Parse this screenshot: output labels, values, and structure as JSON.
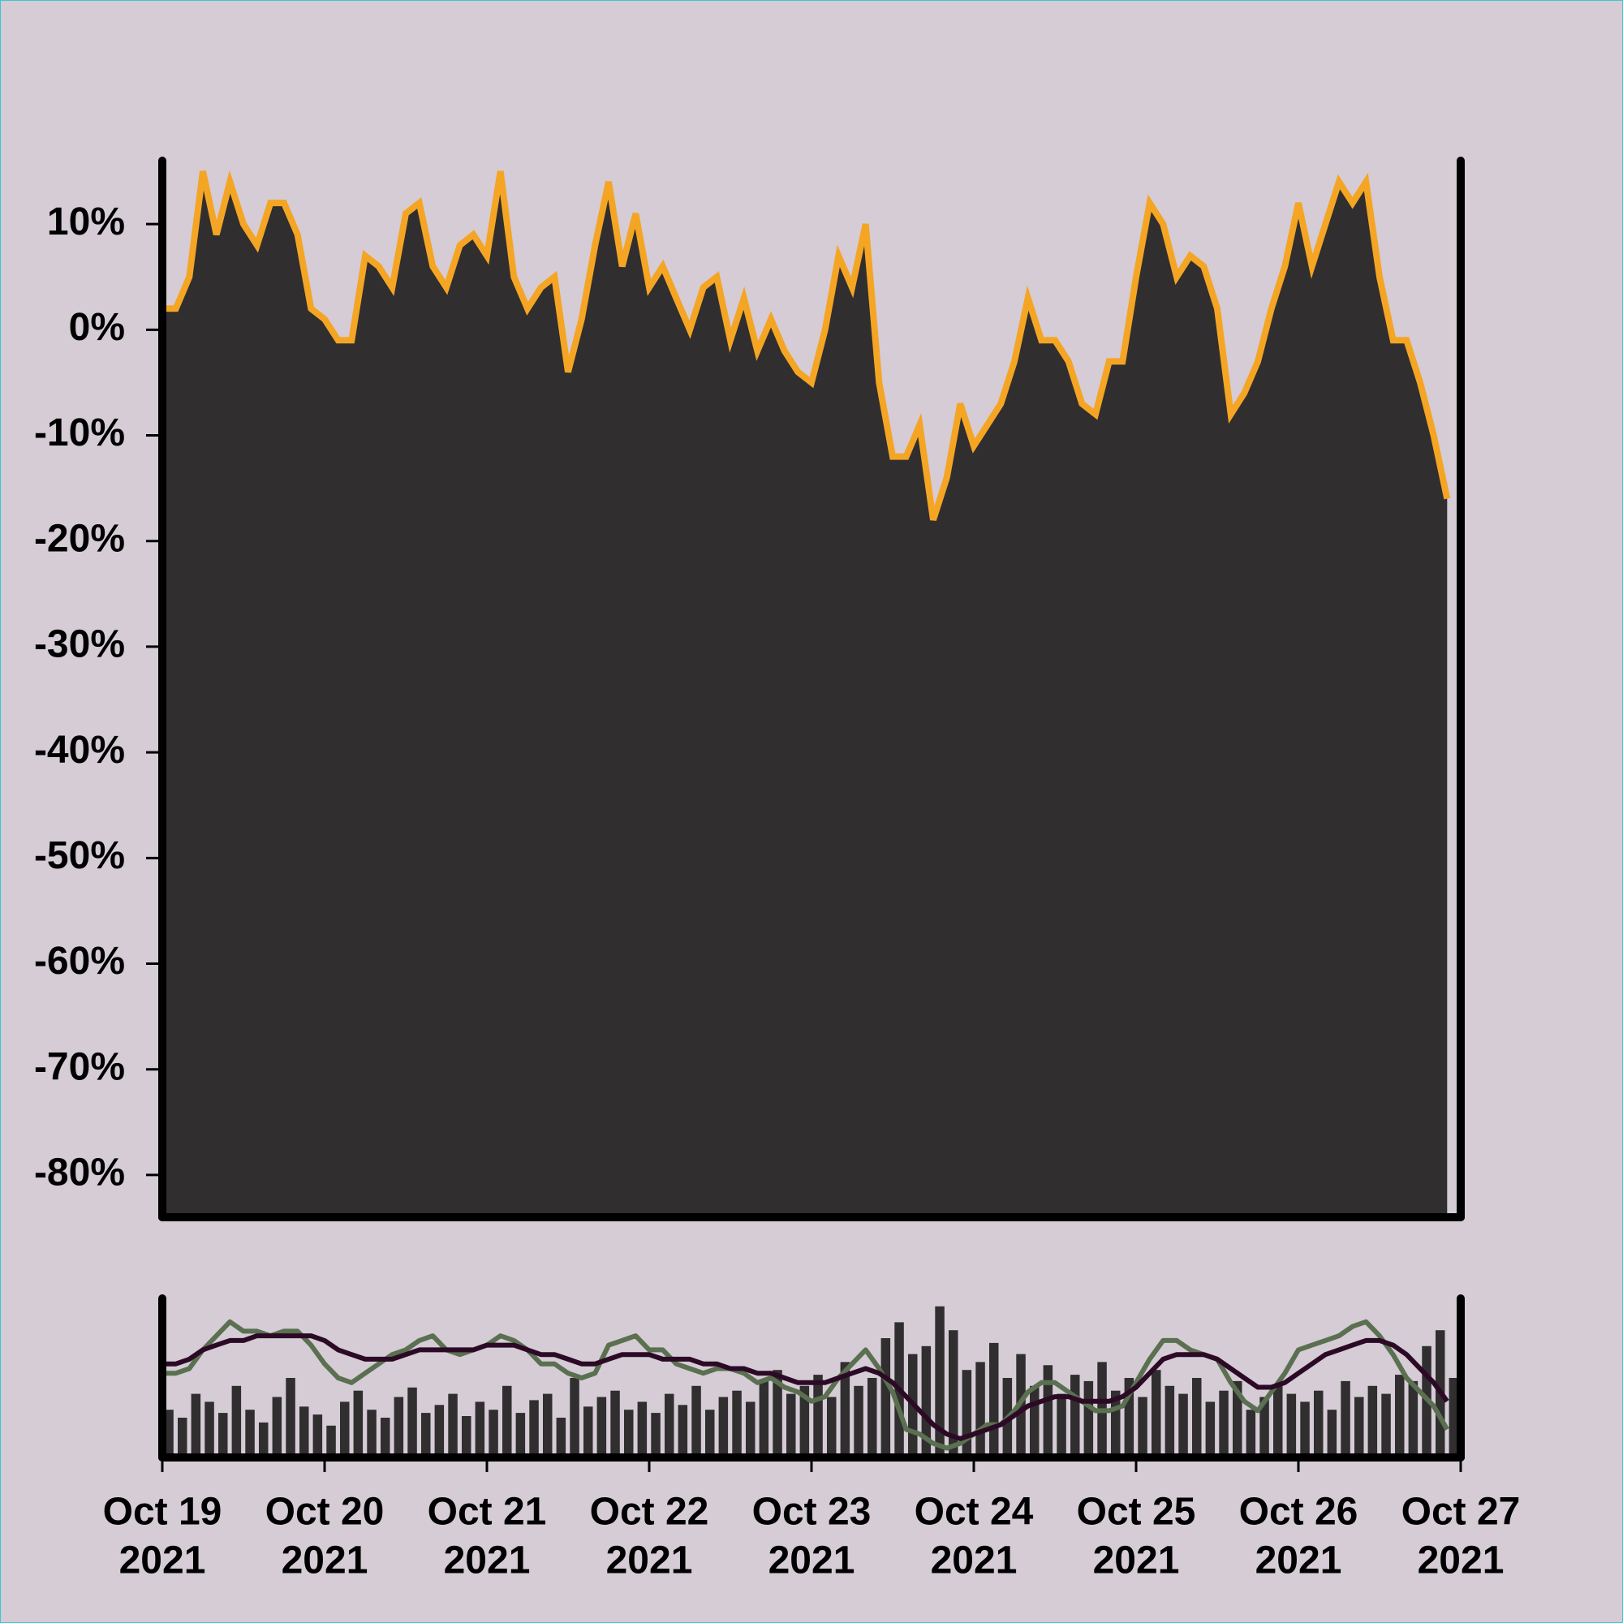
{
  "chart_data": {
    "type": "area",
    "color": "#302e2f",
    "line_color": "#f5a524",
    "x": [
      "2021-10-19 00:00",
      "2021-10-19 02:00",
      "2021-10-19 04:00",
      "2021-10-19 06:00",
      "2021-10-19 08:00",
      "2021-10-19 10:00",
      "2021-10-19 12:00",
      "2021-10-19 14:00",
      "2021-10-19 16:00",
      "2021-10-19 18:00",
      "2021-10-19 20:00",
      "2021-10-19 22:00",
      "2021-10-20 00:00",
      "2021-10-20 02:00",
      "2021-10-20 04:00",
      "2021-10-20 06:00",
      "2021-10-20 08:00",
      "2021-10-20 10:00",
      "2021-10-20 12:00",
      "2021-10-20 14:00",
      "2021-10-20 16:00",
      "2021-10-20 18:00",
      "2021-10-20 20:00",
      "2021-10-20 22:00",
      "2021-10-21 00:00",
      "2021-10-21 02:00",
      "2021-10-21 04:00",
      "2021-10-21 06:00",
      "2021-10-21 08:00",
      "2021-10-21 10:00",
      "2021-10-21 12:00",
      "2021-10-21 14:00",
      "2021-10-21 16:00",
      "2021-10-21 18:00",
      "2021-10-21 20:00",
      "2021-10-21 22:00",
      "2021-10-22 00:00",
      "2021-10-22 02:00",
      "2021-10-22 04:00",
      "2021-10-22 06:00",
      "2021-10-22 08:00",
      "2021-10-22 10:00",
      "2021-10-22 12:00",
      "2021-10-22 14:00",
      "2021-10-22 16:00",
      "2021-10-22 18:00",
      "2021-10-22 20:00",
      "2021-10-22 22:00",
      "2021-10-23 00:00",
      "2021-10-23 02:00",
      "2021-10-23 04:00",
      "2021-10-23 06:00",
      "2021-10-23 08:00",
      "2021-10-23 10:00",
      "2021-10-23 12:00",
      "2021-10-23 14:00",
      "2021-10-23 16:00",
      "2021-10-23 18:00",
      "2021-10-23 20:00",
      "2021-10-23 22:00",
      "2021-10-24 00:00",
      "2021-10-24 02:00",
      "2021-10-24 04:00",
      "2021-10-24 06:00",
      "2021-10-24 08:00",
      "2021-10-24 10:00",
      "2021-10-24 12:00",
      "2021-10-24 14:00",
      "2021-10-24 16:00",
      "2021-10-24 18:00",
      "2021-10-24 20:00",
      "2021-10-24 22:00",
      "2021-10-25 00:00",
      "2021-10-25 02:00",
      "2021-10-25 04:00",
      "2021-10-25 06:00",
      "2021-10-25 08:00",
      "2021-10-25 10:00",
      "2021-10-25 12:00",
      "2021-10-25 14:00",
      "2021-10-25 16:00",
      "2021-10-25 18:00",
      "2021-10-25 20:00",
      "2021-10-25 22:00",
      "2021-10-26 00:00",
      "2021-10-26 02:00",
      "2021-10-26 04:00",
      "2021-10-26 06:00",
      "2021-10-26 08:00",
      "2021-10-26 10:00",
      "2021-10-26 12:00",
      "2021-10-26 14:00",
      "2021-10-26 16:00",
      "2021-10-26 18:00",
      "2021-10-26 20:00",
      "2021-10-26 22:00"
    ],
    "values": [
      2,
      2,
      5,
      15,
      9,
      14,
      10,
      8,
      12,
      12,
      9,
      2,
      1,
      -1,
      -1,
      7,
      6,
      4,
      11,
      12,
      6,
      4,
      8,
      9,
      7,
      15,
      5,
      2,
      4,
      5,
      -4,
      1,
      8,
      14,
      6,
      11,
      4,
      6,
      3,
      0,
      4,
      5,
      -1,
      3,
      -2,
      1,
      -2,
      -4,
      -5,
      0,
      7,
      4,
      10,
      -5,
      -12,
      -12,
      -9,
      -18,
      -14,
      -7,
      -11,
      -9,
      -7,
      -3,
      3,
      -1,
      -1,
      -3,
      -7,
      -8,
      -3,
      -3,
      5,
      12,
      10,
      5,
      7,
      6,
      2,
      -8,
      -6,
      -3,
      2,
      6,
      12,
      6,
      10,
      14,
      12,
      14,
      5,
      -1,
      -1,
      -5,
      -10,
      -16
    ],
    "xlim": [
      "2021-10-19",
      "2021-10-27"
    ],
    "xticks": [
      {
        "value": "2021-10-19",
        "label": [
          "Oct 19",
          "2021"
        ]
      },
      {
        "value": "2021-10-20",
        "label": [
          "Oct 20",
          "2021"
        ]
      },
      {
        "value": "2021-10-21",
        "label": [
          "Oct 21",
          "2021"
        ]
      },
      {
        "value": "2021-10-22",
        "label": [
          "Oct 22",
          "2021"
        ]
      },
      {
        "value": "2021-10-23",
        "label": [
          "Oct 23",
          "2021"
        ]
      },
      {
        "value": "2021-10-24",
        "label": [
          "Oct 24",
          "2021"
        ]
      },
      {
        "value": "2021-10-25",
        "label": [
          "Oct 25",
          "2021"
        ]
      },
      {
        "value": "2021-10-26",
        "label": [
          "Oct 26",
          "2021"
        ]
      },
      {
        "value": "2021-10-27",
        "label": [
          "Oct 27",
          "2021"
        ]
      }
    ],
    "ylim": [
      -84,
      16
    ],
    "yticks": [
      {
        "value": 10,
        "label": "10%"
      },
      {
        "value": 0,
        "label": "0%"
      },
      {
        "value": -10,
        "label": "-10%"
      },
      {
        "value": -20,
        "label": "-20%"
      },
      {
        "value": -30,
        "label": "-30%"
      },
      {
        "value": -40,
        "label": "-40%"
      },
      {
        "value": -50,
        "label": "-50%"
      },
      {
        "value": -60,
        "label": "-60%"
      },
      {
        "value": -70,
        "label": "-70%"
      },
      {
        "value": -80,
        "label": "-80%"
      }
    ],
    "volume": {
      "color": "#302e2f",
      "ylim": [
        0,
        100
      ],
      "values": [
        30,
        25,
        40,
        35,
        28,
        45,
        30,
        22,
        38,
        50,
        32,
        27,
        20,
        35,
        42,
        30,
        25,
        38,
        44,
        28,
        33,
        40,
        26,
        35,
        30,
        45,
        28,
        36,
        40,
        25,
        50,
        32,
        38,
        42,
        30,
        35,
        28,
        40,
        33,
        45,
        30,
        38,
        42,
        35,
        48,
        55,
        40,
        45,
        52,
        38,
        60,
        45,
        50,
        75,
        85,
        65,
        70,
        95,
        80,
        55,
        60,
        72,
        50,
        65,
        45,
        58,
        40,
        52,
        48,
        60,
        42,
        50,
        38,
        55,
        45,
        40,
        50,
        35,
        42,
        48,
        30,
        38,
        45,
        40,
        35,
        42,
        30,
        48,
        38,
        45,
        40,
        52,
        48,
        70,
        80,
        50
      ]
    },
    "y2lim": [
      -16,
      18
    ],
    "moving_averages": [
      {
        "color": "#5a7050",
        "axis": "y2",
        "values": [
          2,
          2,
          3,
          7,
          10,
          13,
          11,
          11,
          10,
          11,
          11,
          8,
          4,
          1,
          0,
          2,
          4,
          6,
          7,
          9,
          10,
          7,
          6,
          7,
          8,
          10,
          9,
          7,
          4,
          4,
          2,
          1,
          2,
          8,
          9,
          10,
          7,
          7,
          4,
          3,
          2,
          3,
          3,
          2,
          0,
          1,
          -1,
          -2,
          -4,
          -3,
          1,
          4,
          7,
          3,
          -2,
          -10,
          -11,
          -13,
          -14,
          -13,
          -11,
          -9,
          -9,
          -6,
          -2,
          0,
          0,
          -2,
          -4,
          -6,
          -6,
          -5,
          0,
          5,
          9,
          9,
          7,
          6,
          5,
          0,
          -4,
          -6,
          -2,
          2,
          7,
          8,
          9,
          10,
          12,
          13,
          10,
          6,
          1,
          -2,
          -5,
          -10
        ]
      },
      {
        "color": "#2c0a26",
        "axis": "y2",
        "values": [
          4,
          4,
          5,
          7,
          8,
          9,
          9,
          10,
          10,
          10,
          10,
          10,
          9,
          7,
          6,
          5,
          5,
          5,
          6,
          7,
          7,
          7,
          7,
          7,
          8,
          8,
          8,
          7,
          6,
          6,
          5,
          4,
          4,
          5,
          6,
          6,
          6,
          5,
          5,
          5,
          4,
          4,
          3,
          3,
          2,
          2,
          1,
          0,
          0,
          0,
          1,
          2,
          3,
          2,
          0,
          -3,
          -6,
          -9,
          -11,
          -12,
          -11,
          -10,
          -9,
          -7,
          -5,
          -4,
          -3,
          -3,
          -4,
          -4,
          -4,
          -3,
          -1,
          2,
          5,
          6,
          6,
          6,
          5,
          3,
          1,
          -1,
          -1,
          0,
          2,
          4,
          6,
          7,
          8,
          9,
          9,
          8,
          6,
          3,
          0,
          -4
        ]
      }
    ]
  }
}
